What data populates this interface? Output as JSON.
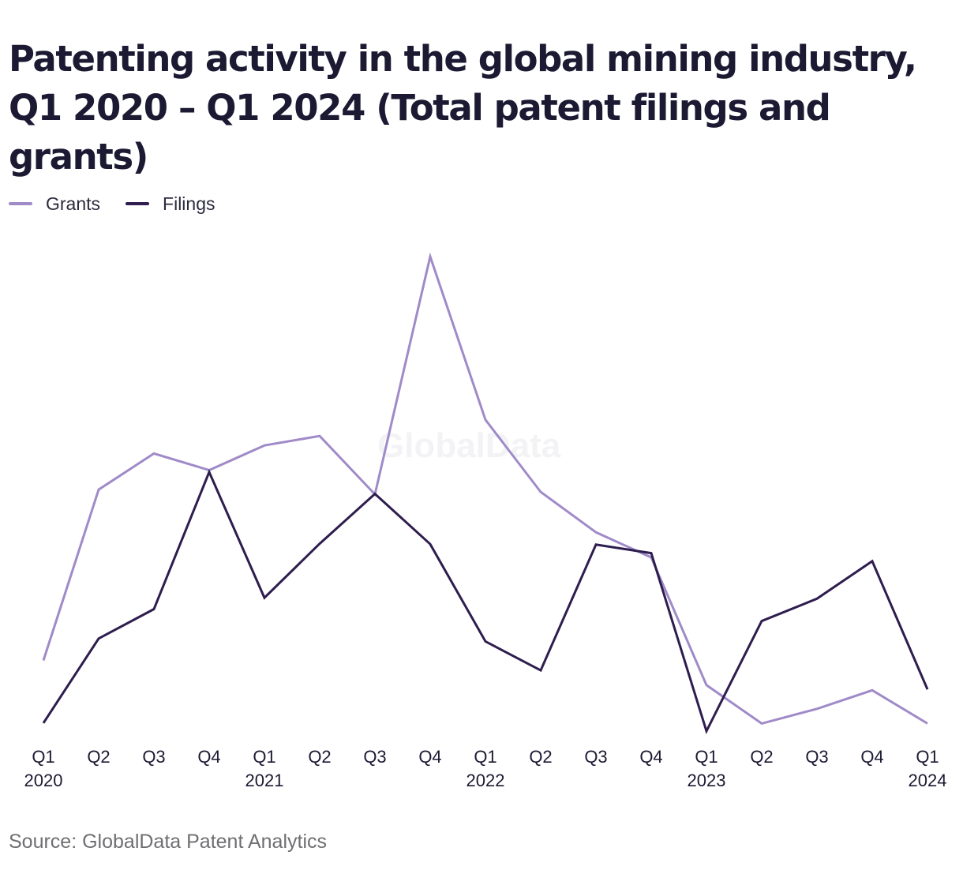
{
  "title": "Patenting activity in the global mining industry, Q1 2020 – Q1 2024 (Total patent filings and grants)",
  "watermark": "GlobalData",
  "source": "Source: GlobalData Patent Analytics",
  "colors": {
    "grants": "#a08ac8",
    "filings": "#2e1d4e",
    "text": "#1c1a33",
    "source": "#6f6f73"
  },
  "chart_data": {
    "type": "line",
    "title": "Patenting activity in the global mining industry, Q1 2020 – Q1 2024 (Total patent filings and grants)",
    "xlabel": "",
    "ylabel": "",
    "grid": false,
    "legend_position": "top-left",
    "categories": [
      "Q1 2020",
      "Q2 2020",
      "Q3 2020",
      "Q4 2020",
      "Q1 2021",
      "Q2 2021",
      "Q3 2021",
      "Q4 2021",
      "Q1 2022",
      "Q2 2022",
      "Q3 2022",
      "Q4 2022",
      "Q1 2023",
      "Q2 2023",
      "Q3 2023",
      "Q4 2023",
      "Q1 2024"
    ],
    "tick_labels": [
      {
        "quarter": "Q1",
        "year": "2020"
      },
      {
        "quarter": "Q2",
        "year": ""
      },
      {
        "quarter": "Q3",
        "year": ""
      },
      {
        "quarter": "Q4",
        "year": ""
      },
      {
        "quarter": "Q1",
        "year": "2021"
      },
      {
        "quarter": "Q2",
        "year": ""
      },
      {
        "quarter": "Q3",
        "year": ""
      },
      {
        "quarter": "Q4",
        "year": ""
      },
      {
        "quarter": "Q1",
        "year": "2022"
      },
      {
        "quarter": "Q2",
        "year": ""
      },
      {
        "quarter": "Q3",
        "year": ""
      },
      {
        "quarter": "Q4",
        "year": ""
      },
      {
        "quarter": "Q1",
        "year": "2023"
      },
      {
        "quarter": "Q2",
        "year": ""
      },
      {
        "quarter": "Q3",
        "year": ""
      },
      {
        "quarter": "Q4",
        "year": ""
      },
      {
        "quarter": "Q1",
        "year": "2024"
      }
    ],
    "ylim": [
      0,
      100
    ],
    "series": [
      {
        "name": "Grants",
        "color": "#a08ac8",
        "values": [
          14.9,
          50.9,
          58.5,
          55.0,
          60.2,
          62.2,
          49.9,
          100.0,
          65.6,
          50.4,
          41.9,
          36.6,
          9.7,
          1.6,
          4.7,
          8.6,
          1.6
        ]
      },
      {
        "name": "Filings",
        "color": "#2e1d4e",
        "values": [
          1.7,
          19.5,
          25.7,
          54.6,
          28.1,
          39.5,
          50.0,
          39.4,
          18.9,
          12.8,
          39.3,
          37.5,
          0.0,
          23.2,
          27.9,
          35.8,
          8.8
        ]
      }
    ]
  }
}
